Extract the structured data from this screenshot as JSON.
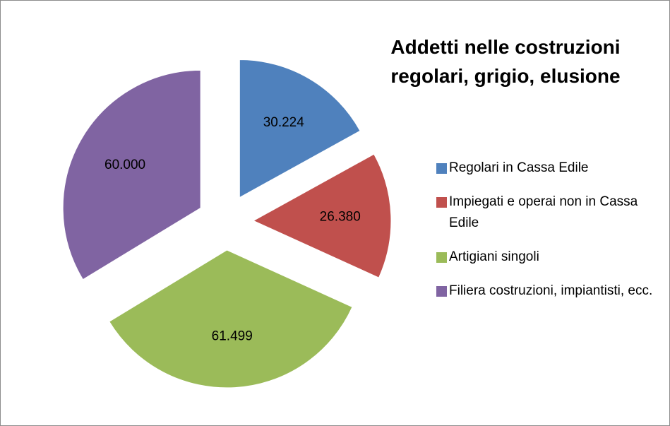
{
  "chart_data": {
    "type": "pie",
    "title": "Addetti nelle costruzioni regolari, grigio, elusione",
    "categories": [
      "Regolari in Cassa Edile",
      "Impiegati e operai non in Cassa Edile",
      "Artigiani singoli",
      "Filiera costruzioni, impiantisti, ecc."
    ],
    "values": [
      30224,
      26380,
      61499,
      60000
    ],
    "value_labels": [
      "30.224",
      "26.380",
      "61.499",
      "60.000"
    ],
    "colors": [
      "#4f81bd",
      "#c0504d",
      "#9bbb59",
      "#8064a2"
    ],
    "legend": "right"
  }
}
